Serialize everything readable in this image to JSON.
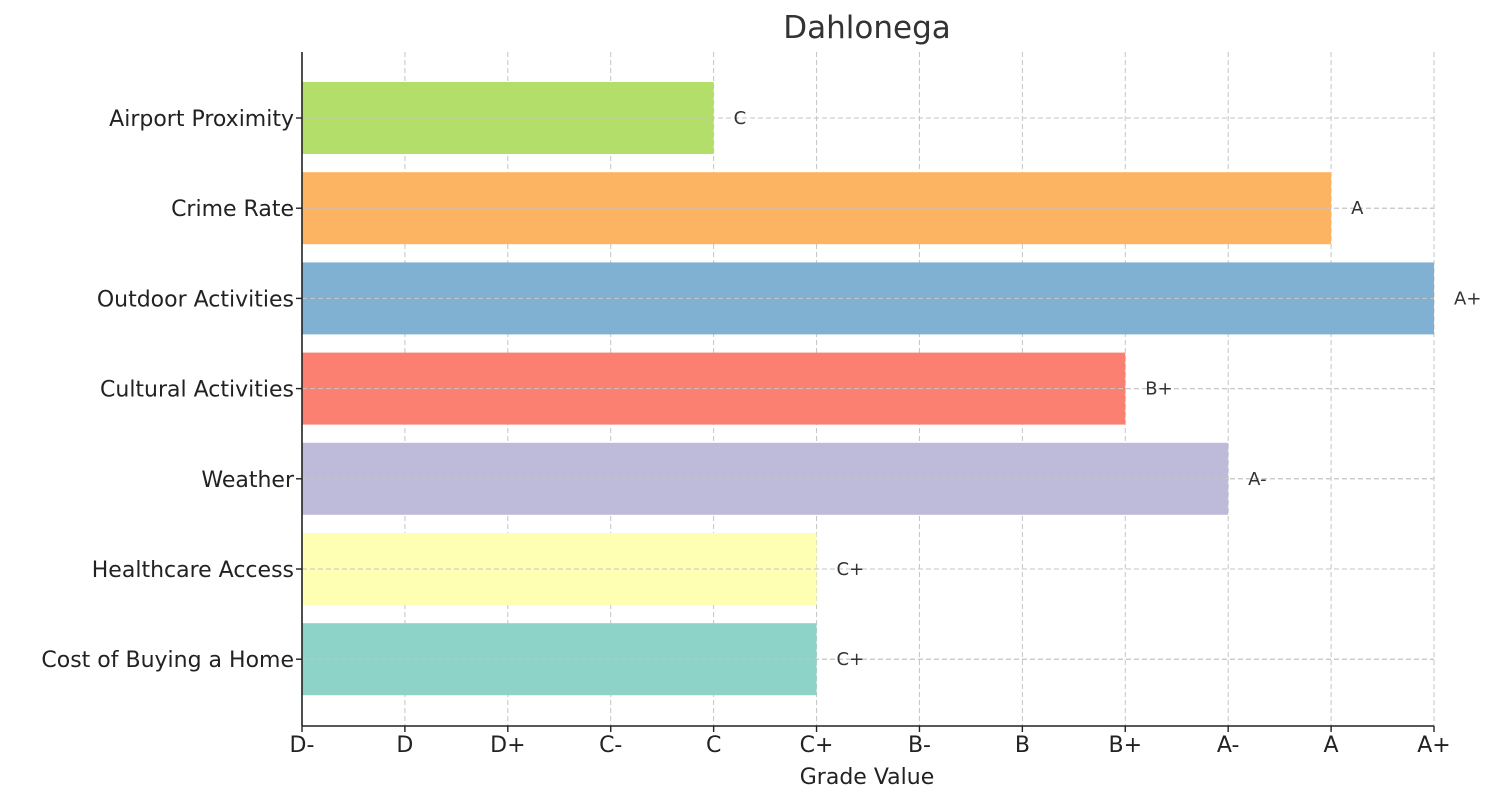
{
  "chart_data": {
    "type": "bar",
    "orientation": "horizontal",
    "title": "Dahlonega",
    "xlabel": "Grade Value",
    "ylabel": "",
    "grade_scale": [
      "D-",
      "D",
      "D+",
      "C-",
      "C",
      "C+",
      "B-",
      "B",
      "B+",
      "A-",
      "A",
      "A+"
    ],
    "xlim": [
      0,
      11
    ],
    "grid": true,
    "categories": [
      "Airport Proximity",
      "Crime Rate",
      "Outdoor Activities",
      "Cultural Activities",
      "Weather",
      "Healthcare Access",
      "Cost of Buying a Home"
    ],
    "values": [
      4,
      10,
      11,
      8,
      9,
      5,
      5
    ],
    "labels": [
      "C",
      "A",
      "A+",
      "B+",
      "A-",
      "C+",
      "C+"
    ],
    "colors": [
      "#b3de69",
      "#fdb462",
      "#80b1d3",
      "#fb8072",
      "#bebada",
      "#ffffb3",
      "#8dd3c7"
    ]
  }
}
